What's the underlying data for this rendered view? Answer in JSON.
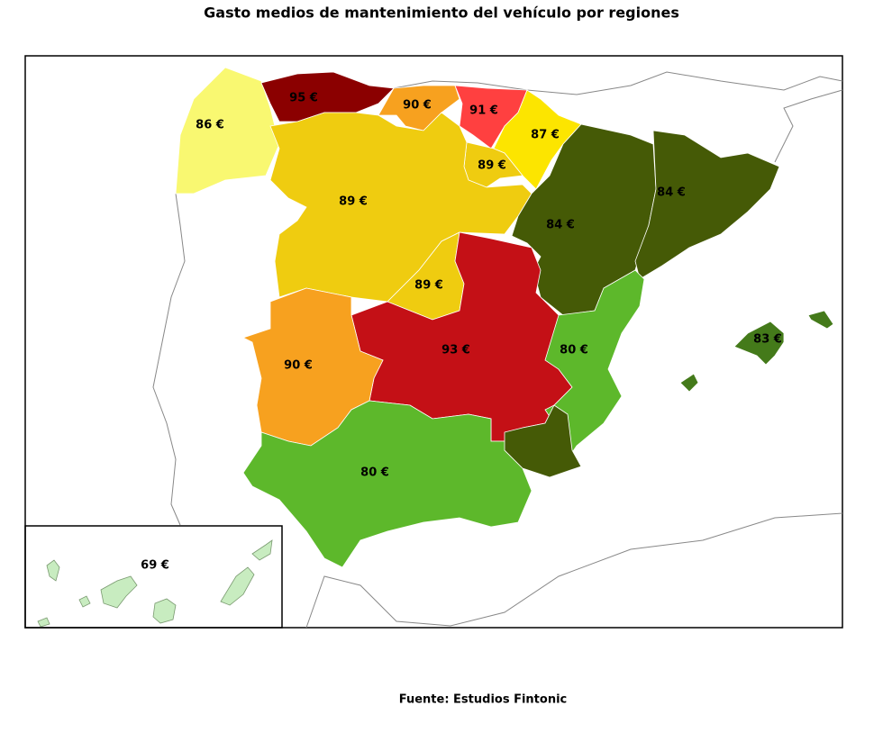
{
  "chart_data": {
    "type": "choropleth",
    "title": "Gasto medios de mantenimiento del vehículo por regiones",
    "source": "Fuente: Estudios Fintonic",
    "values": [
      86,
      95,
      90,
      91,
      87,
      89,
      89,
      84,
      84,
      89,
      93,
      90,
      80,
      83,
      80,
      69
    ],
    "value_labels": [
      "86 €",
      "95 €",
      "90 €",
      "91 €",
      "87 €",
      "89 €",
      "89 €",
      "84 €",
      "84 €",
      "89 €",
      "93 €",
      "90 €",
      "80 €",
      "83 €",
      "80 €",
      "69 €"
    ],
    "colors": [
      "#f9f871",
      "#8b0000",
      "#f7a11f",
      "#ff4040",
      "#fce500",
      "#efcc10",
      "#efcc10",
      "#455a06",
      "#455a06",
      "#efcc10",
      "#c41016",
      "#f7a11f",
      "#5db82b",
      "#447a1a",
      "#5db82b",
      "#c8ecc0"
    ]
  }
}
